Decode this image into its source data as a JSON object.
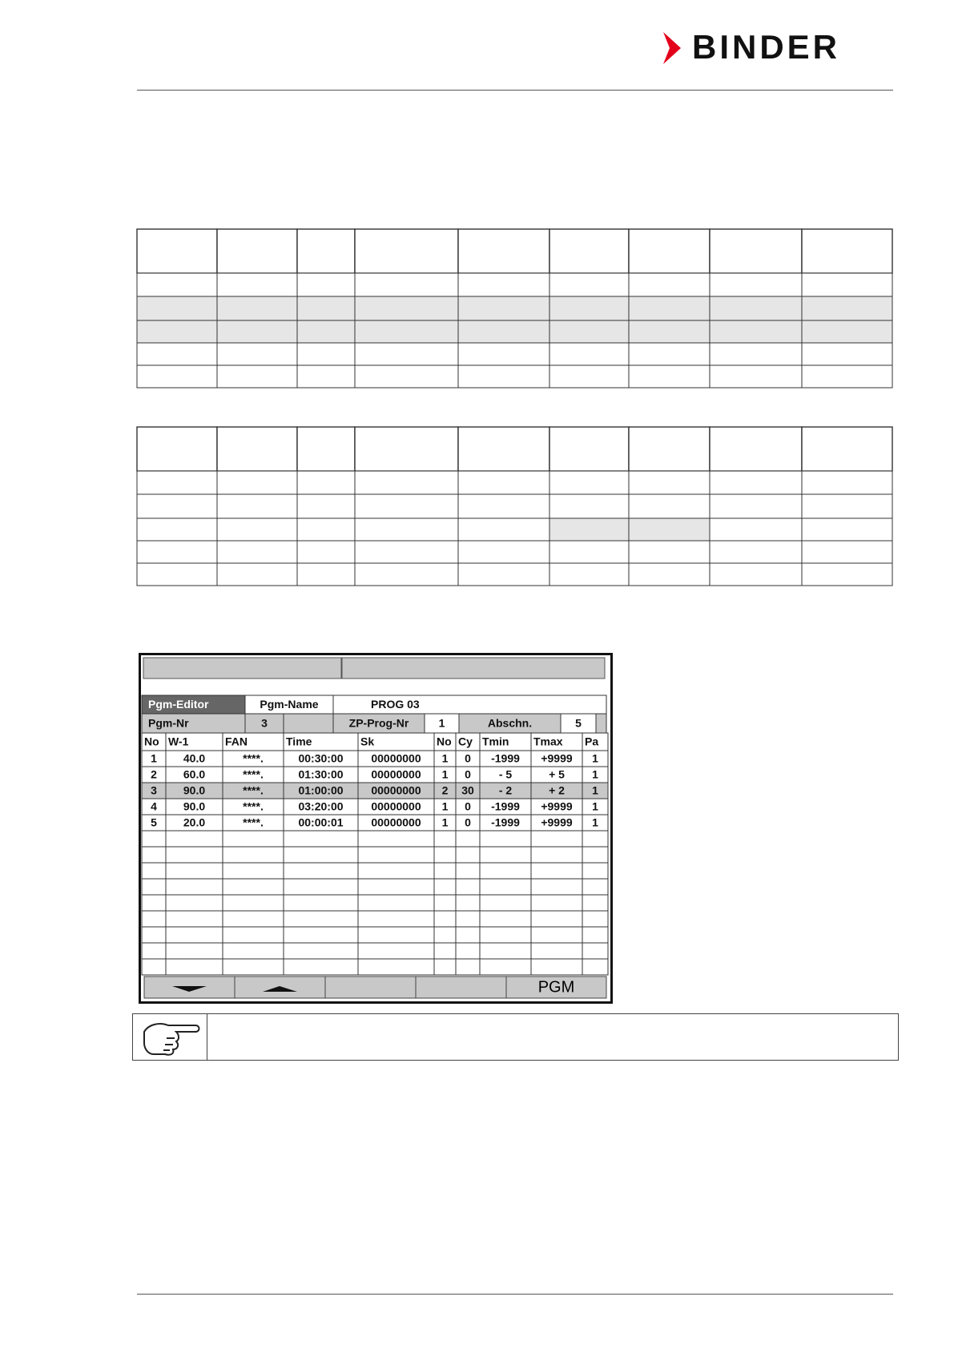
{
  "header": {
    "logo": "BINDER"
  },
  "screen": {
    "editor_label": "Pgm-Editor",
    "name_label": "Pgm-Name",
    "name_value": "PROG 03",
    "nr_label": "Pgm-Nr",
    "nr_value": "3",
    "zp_label": "ZP-Prog-Nr",
    "zp_value": "1",
    "section_label": "Abschn.",
    "section_value": "5",
    "columns": [
      "No",
      "W-1",
      "FAN",
      "Time",
      "Sk",
      "No",
      "Cy",
      "Tmin",
      "Tmax",
      "Pa"
    ],
    "rows": [
      [
        "1",
        "40.0",
        "****.",
        "00:30:00",
        "00000000",
        "1",
        "0",
        "-1999",
        "+9999",
        "1"
      ],
      [
        "2",
        "60.0",
        "****.",
        "01:30:00",
        "00000000",
        "1",
        "0",
        "-    5",
        "+    5",
        "1"
      ],
      [
        "3",
        "90.0",
        "****.",
        "01:00:00",
        "00000000",
        "2",
        "30",
        "-    2",
        "+    2",
        "1"
      ],
      [
        "4",
        "90.0",
        "****.",
        "03:20:00",
        "00000000",
        "1",
        "0",
        "-1999",
        "+9999",
        "1"
      ],
      [
        "5",
        "20.0",
        "****.",
        "00:00:01",
        "00000000",
        "1",
        "0",
        "-1999",
        "+9999",
        "1"
      ]
    ],
    "selected_row": 2,
    "button": "PGM"
  }
}
